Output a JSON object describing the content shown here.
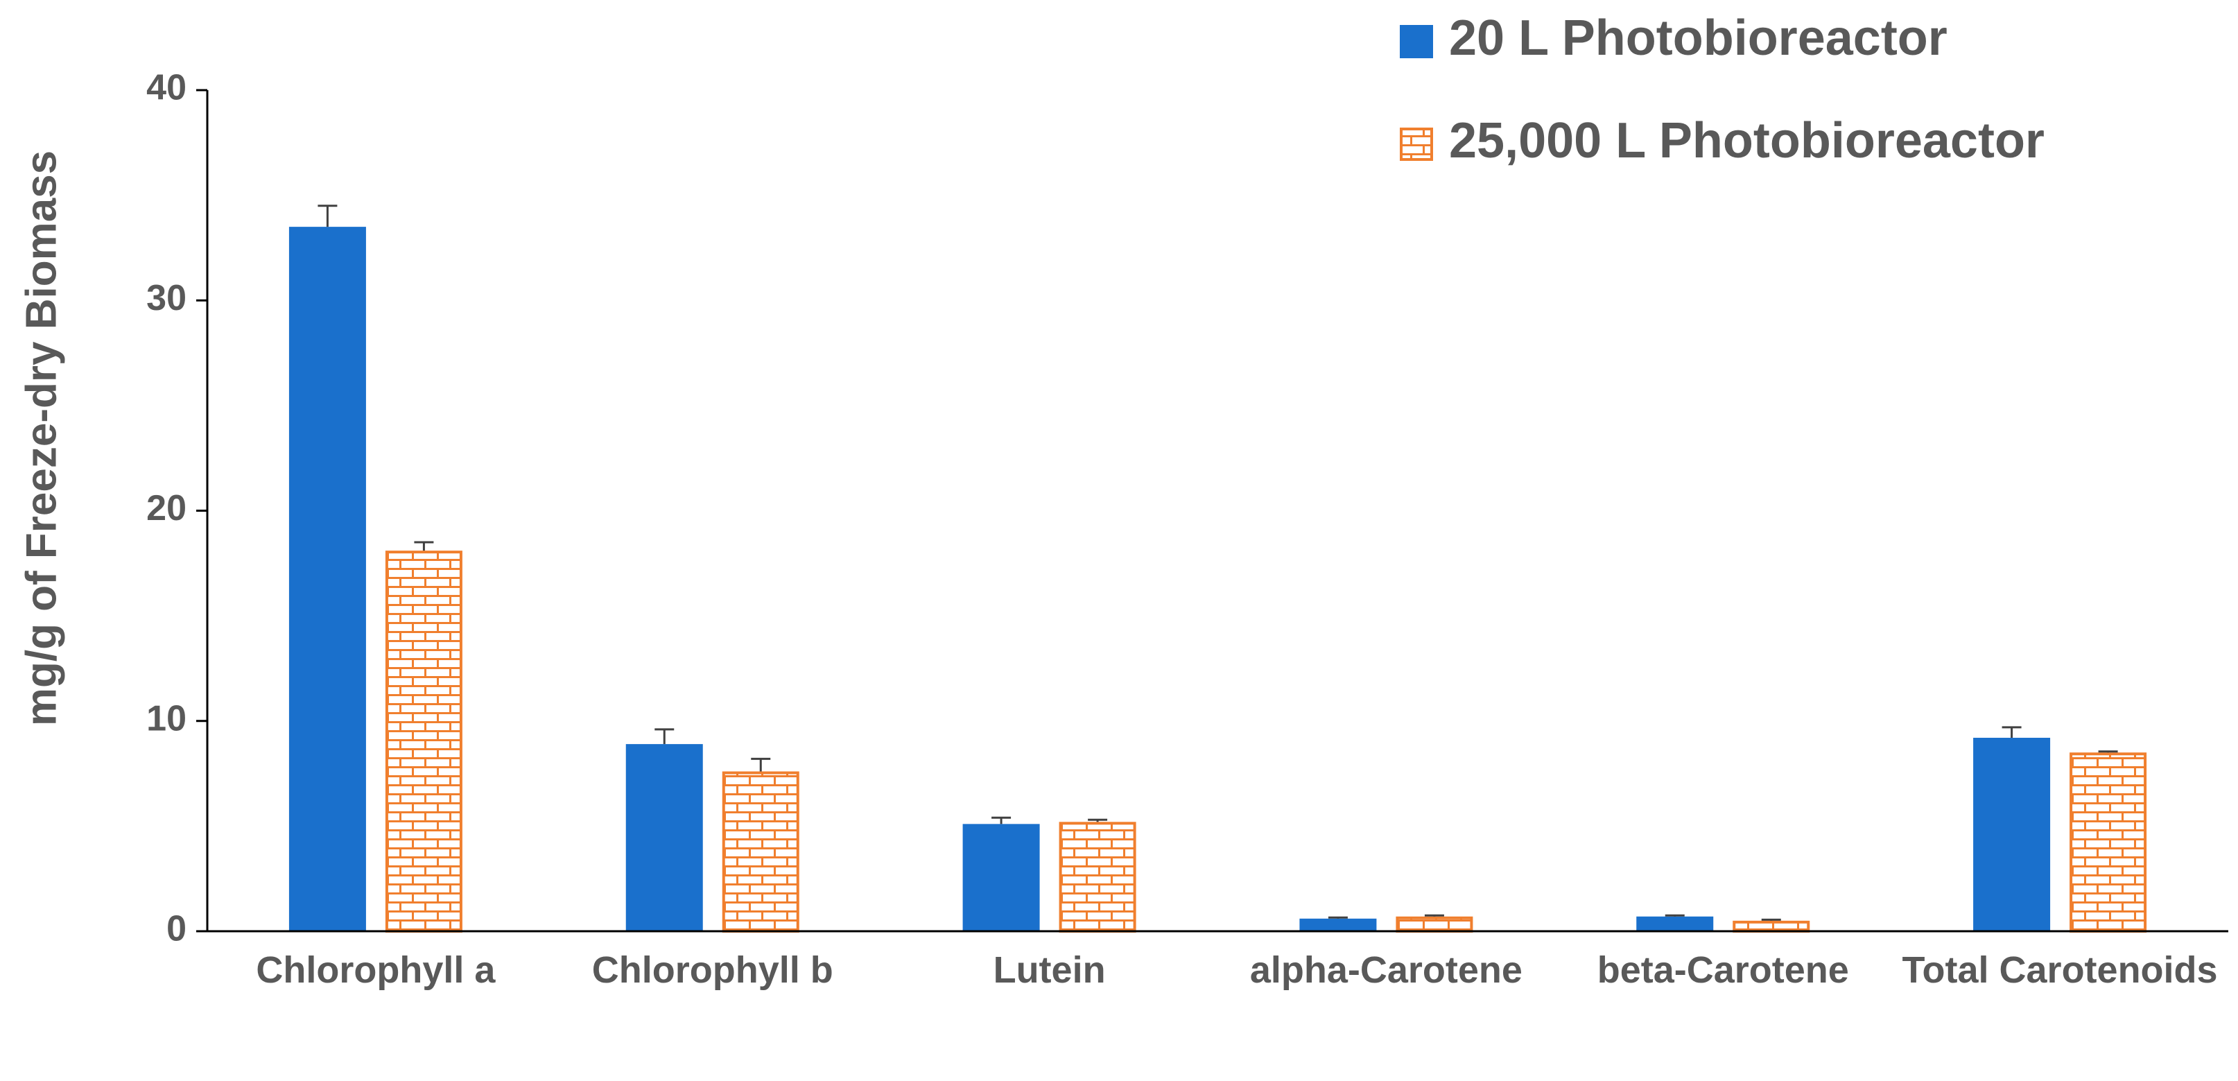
{
  "chart_data": {
    "type": "bar",
    "y_axis_label": "mg/g of Freeze-dry Biomass",
    "categories": [
      "Chlorophyll a",
      "Chlorophyll b",
      "Lutein",
      "alpha-Carotene",
      "beta-Carotene",
      "Total Carotenoids"
    ],
    "series": [
      {
        "name": "20 L Photobioreactor",
        "color": "#1A70CC",
        "pattern": "solid",
        "values": [
          33.5,
          8.9,
          5.1,
          0.6,
          0.7,
          9.2
        ],
        "errors": [
          1.0,
          0.7,
          0.3,
          0.05,
          0.05,
          0.5
        ]
      },
      {
        "name": "25,000 L Photobioreactor",
        "color": "#F07F2E",
        "pattern": "brick",
        "values": [
          18.1,
          7.6,
          5.2,
          0.7,
          0.5,
          8.5
        ],
        "errors": [
          0.4,
          0.6,
          0.1,
          0.05,
          0.05,
          0.05
        ]
      }
    ],
    "ylim": [
      0,
      40
    ],
    "yticks": [
      0,
      10,
      20,
      30,
      40
    ],
    "grid": false,
    "legend_position": "top-right"
  }
}
